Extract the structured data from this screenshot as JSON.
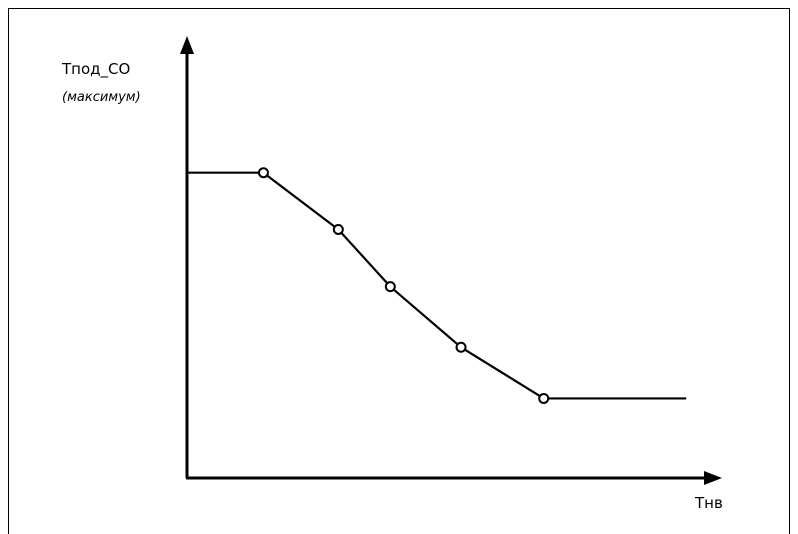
{
  "chart_data": {
    "type": "line",
    "ylabel_main": "Тпод_СО",
    "ylabel_note": "(максимум)",
    "xlabel": "Тнв",
    "axes": {
      "arrows": true,
      "ticks": false,
      "grid": false
    },
    "series": [
      {
        "line": [
          [
            0,
            0.71
          ],
          [
            0.147,
            0.71
          ],
          [
            0.291,
            0.578
          ],
          [
            0.391,
            0.445
          ],
          [
            0.527,
            0.304
          ],
          [
            0.686,
            0.185
          ],
          [
            0.96,
            0.185
          ]
        ],
        "markers": [
          [
            0.147,
            0.71
          ],
          [
            0.291,
            0.578
          ],
          [
            0.391,
            0.445
          ],
          [
            0.527,
            0.304
          ],
          [
            0.686,
            0.185
          ]
        ]
      }
    ]
  }
}
